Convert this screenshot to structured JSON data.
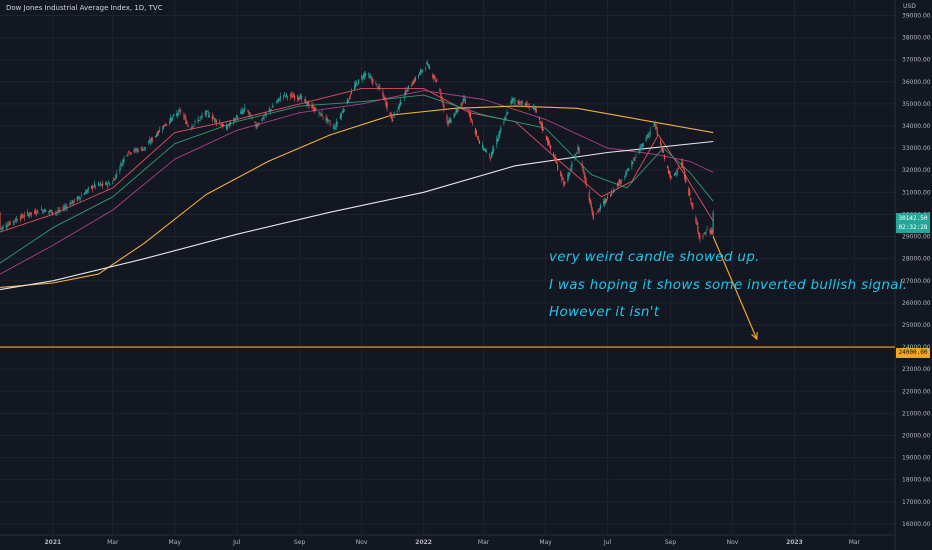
{
  "header": {
    "title": "Dow Jones Industrial Average Index, 1D, TVC",
    "currency": "USD"
  },
  "annotations": {
    "line1": "very weird candle showed up.",
    "line2": "I was hoping it shows some inverted bullish signal.",
    "line3": "However it isn't"
  },
  "price_label": {
    "value": "30142.50",
    "countdown": "02:32:28"
  },
  "level_label": {
    "value": "24000.00"
  },
  "colors": {
    "background": "#131722",
    "grid": "#1f2330",
    "up": "#26a69a",
    "down": "#ef5350",
    "level": "#f0a428",
    "arrow": "#f0a428",
    "ma_fast": "#e05060",
    "ma_green": "#2e9c6e",
    "ma_purple": "#b0408a",
    "ma_orange": "#f0b040",
    "ma_white": "#e6e6e6",
    "annotation": "#22c4e6"
  },
  "chart_data": {
    "type": "line",
    "title": "Dow Jones Industrial Average Index, 1D, TVC",
    "y_unit": "USD",
    "y_ticks": [
      16000,
      17000,
      18000,
      19000,
      20000,
      21000,
      22000,
      23000,
      24000,
      25000,
      26000,
      27000,
      28000,
      29000,
      30000,
      31000,
      32000,
      33000,
      34000,
      35000,
      36000,
      37000,
      38000,
      39000
    ],
    "ylim": [
      15500,
      39700
    ],
    "x_ticks": [
      {
        "label": "2021",
        "x": "2021-01-01"
      },
      {
        "label": "Mar",
        "x": "2021-03-01"
      },
      {
        "label": "May",
        "x": "2021-05-01"
      },
      {
        "label": "Jul",
        "x": "2021-07-01"
      },
      {
        "label": "Sep",
        "x": "2021-09-01"
      },
      {
        "label": "Nov",
        "x": "2021-11-01"
      },
      {
        "label": "2022",
        "x": "2022-01-01"
      },
      {
        "label": "Mar",
        "x": "2022-03-01"
      },
      {
        "label": "May",
        "x": "2022-05-01"
      },
      {
        "label": "Jul",
        "x": "2022-07-01"
      },
      {
        "label": "Sep",
        "x": "2022-09-01"
      },
      {
        "label": "Nov",
        "x": "2022-11-01"
      },
      {
        "label": "2023",
        "x": "2023-01-01"
      },
      {
        "label": "Mar",
        "x": "2023-03-01"
      }
    ],
    "xlim": [
      "2020-11-10",
      "2023-04-10"
    ],
    "series": [
      {
        "role": "price",
        "points": [
          [
            "2020-11-10",
            29350
          ],
          [
            "2020-12-01",
            29900
          ],
          [
            "2020-12-20",
            30200
          ],
          [
            "2021-01-05",
            30100
          ],
          [
            "2021-01-25",
            30700
          ],
          [
            "2021-02-10",
            31300
          ],
          [
            "2021-02-28",
            31400
          ],
          [
            "2021-03-15",
            32800
          ],
          [
            "2021-04-01",
            33000
          ],
          [
            "2021-04-20",
            34000
          ],
          [
            "2021-05-07",
            34700
          ],
          [
            "2021-05-15",
            33900
          ],
          [
            "2021-06-01",
            34600
          ],
          [
            "2021-06-20",
            33900
          ],
          [
            "2021-07-10",
            34800
          ],
          [
            "2021-07-20",
            34000
          ],
          [
            "2021-08-15",
            35400
          ],
          [
            "2021-09-01",
            35300
          ],
          [
            "2021-09-25",
            34400
          ],
          [
            "2021-10-05",
            33900
          ],
          [
            "2021-10-25",
            35800
          ],
          [
            "2021-11-05",
            36400
          ],
          [
            "2021-11-20",
            35600
          ],
          [
            "2021-12-01",
            34300
          ],
          [
            "2021-12-15",
            35600
          ],
          [
            "2022-01-04",
            36800
          ],
          [
            "2022-01-15",
            35900
          ],
          [
            "2022-01-25",
            34100
          ],
          [
            "2022-02-10",
            35200
          ],
          [
            "2022-02-25",
            33200
          ],
          [
            "2022-03-08",
            32600
          ],
          [
            "2022-03-29",
            35200
          ],
          [
            "2022-04-20",
            34800
          ],
          [
            "2022-05-05",
            33100
          ],
          [
            "2022-05-20",
            31300
          ],
          [
            "2022-06-02",
            33000
          ],
          [
            "2022-06-17",
            29900
          ],
          [
            "2022-07-05",
            31000
          ],
          [
            "2022-07-20",
            31900
          ],
          [
            "2022-08-16",
            34100
          ],
          [
            "2022-09-01",
            31600
          ],
          [
            "2022-09-12",
            32300
          ],
          [
            "2022-09-30",
            28900
          ],
          [
            "2022-10-07",
            29300
          ],
          [
            "2022-10-12",
            29200
          ],
          [
            "2022-10-13",
            30100
          ]
        ]
      },
      {
        "role": "ma_fast",
        "points": [
          [
            "2020-11-10",
            29200
          ],
          [
            "2021-01-01",
            30000
          ],
          [
            "2021-03-01",
            31200
          ],
          [
            "2021-05-01",
            33700
          ],
          [
            "2021-07-01",
            34300
          ],
          [
            "2021-09-01",
            35000
          ],
          [
            "2021-11-01",
            35700
          ],
          [
            "2022-01-01",
            35700
          ],
          [
            "2022-02-15",
            34600
          ],
          [
            "2022-04-01",
            34200
          ],
          [
            "2022-05-15",
            32400
          ],
          [
            "2022-06-25",
            30800
          ],
          [
            "2022-07-25",
            31500
          ],
          [
            "2022-08-20",
            33600
          ],
          [
            "2022-09-15",
            31800
          ],
          [
            "2022-10-13",
            29700
          ]
        ]
      },
      {
        "role": "ma_green",
        "points": [
          [
            "2020-11-10",
            27800
          ],
          [
            "2021-01-01",
            29400
          ],
          [
            "2021-03-01",
            30800
          ],
          [
            "2021-05-01",
            33200
          ],
          [
            "2021-07-01",
            34200
          ],
          [
            "2021-09-01",
            34900
          ],
          [
            "2021-11-01",
            35100
          ],
          [
            "2022-01-01",
            35400
          ],
          [
            "2022-03-01",
            34500
          ],
          [
            "2022-05-01",
            33900
          ],
          [
            "2022-06-15",
            31800
          ],
          [
            "2022-07-20",
            31200
          ],
          [
            "2022-08-25",
            33000
          ],
          [
            "2022-09-20",
            31900
          ],
          [
            "2022-10-13",
            30600
          ]
        ]
      },
      {
        "role": "ma_purple",
        "points": [
          [
            "2020-11-10",
            27300
          ],
          [
            "2021-01-01",
            28600
          ],
          [
            "2021-03-01",
            30200
          ],
          [
            "2021-05-01",
            32500
          ],
          [
            "2021-07-01",
            33800
          ],
          [
            "2021-09-01",
            34600
          ],
          [
            "2021-11-01",
            35000
          ],
          [
            "2022-01-01",
            35600
          ],
          [
            "2022-03-01",
            35200
          ],
          [
            "2022-05-01",
            34300
          ],
          [
            "2022-07-01",
            33000
          ],
          [
            "2022-08-20",
            32700
          ],
          [
            "2022-09-20",
            32400
          ],
          [
            "2022-10-13",
            31900
          ]
        ]
      },
      {
        "role": "ma_orange",
        "points": [
          [
            "2020-11-10",
            26700
          ],
          [
            "2021-01-01",
            26900
          ],
          [
            "2021-02-15",
            27300
          ],
          [
            "2021-04-01",
            28700
          ],
          [
            "2021-06-01",
            30900
          ],
          [
            "2021-08-01",
            32400
          ],
          [
            "2021-10-01",
            33600
          ],
          [
            "2021-12-01",
            34500
          ],
          [
            "2022-02-01",
            34800
          ],
          [
            "2022-04-01",
            34900
          ],
          [
            "2022-06-01",
            34800
          ],
          [
            "2022-08-01",
            34300
          ],
          [
            "2022-10-13",
            33700
          ]
        ]
      },
      {
        "role": "ma_white",
        "points": [
          [
            "2020-11-10",
            26600
          ],
          [
            "2021-01-01",
            27000
          ],
          [
            "2021-04-01",
            28000
          ],
          [
            "2021-07-01",
            29100
          ],
          [
            "2021-10-01",
            30100
          ],
          [
            "2022-01-01",
            31000
          ],
          [
            "2022-04-01",
            32200
          ],
          [
            "2022-07-01",
            32800
          ],
          [
            "2022-10-13",
            33300
          ]
        ]
      }
    ],
    "horizontal_line": 24000,
    "arrow": {
      "from": [
        "2022-10-13",
        29000
      ],
      "to": [
        "2022-11-25",
        24000
      ]
    },
    "grid": true
  }
}
